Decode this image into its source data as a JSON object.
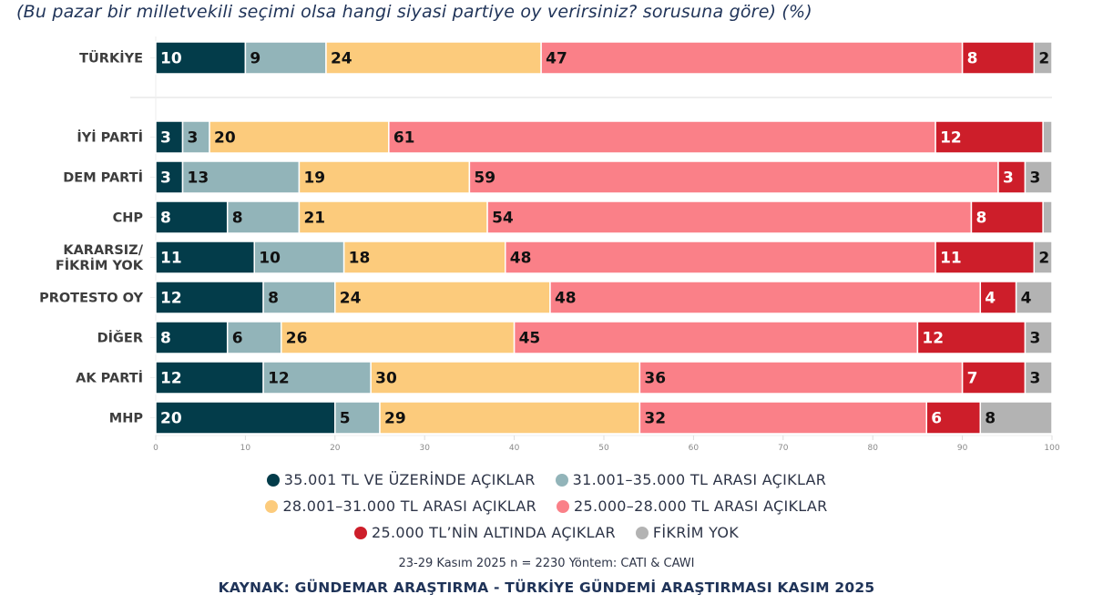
{
  "subtitle": "(Bu pazar bir milletvekili seçimi olsa hangi siyasi partiye oy verirsiniz? sorusuna göre) (%)",
  "colors": {
    "series": [
      "#033c4a",
      "#92b4b9",
      "#fccb7c",
      "#fa8088",
      "#cd1e2a",
      "#b3b3b3"
    ],
    "label_dark": "#111111",
    "label_light": "#ffffff"
  },
  "chart_data": {
    "type": "bar",
    "orientation": "horizontal",
    "stacked": true,
    "title": "(Bu pazar bir milletvekili seçimi olsa hangi siyasi partiye oy verirsiniz? sorusuna göre) (%)",
    "xlabel": "",
    "ylabel": "",
    "xlim": [
      0,
      100
    ],
    "xticks": [
      0,
      10,
      20,
      30,
      40,
      50,
      60,
      70,
      80,
      90,
      100
    ],
    "grid": false,
    "legend_position": "bottom",
    "categories": [
      "TÜRKİYE",
      "İYİ PARTİ",
      "DEM PARTİ",
      "CHP",
      "KARARSIZ/\nFİKRİM YOK",
      "PROTESTO OY",
      "DİĞER",
      "AK PARTİ",
      "MHP"
    ],
    "series": [
      {
        "name": "35.001 TL VE ÜZERİNDE AÇIKLAR",
        "values": [
          10,
          3,
          3,
          8,
          11,
          12,
          8,
          12,
          20
        ]
      },
      {
        "name": "31.001–35.000 TL ARASI AÇIKLAR",
        "values": [
          9,
          3,
          13,
          8,
          10,
          8,
          6,
          12,
          5
        ]
      },
      {
        "name": "28.001–31.000 TL ARASI AÇIKLAR",
        "values": [
          24,
          20,
          19,
          21,
          18,
          24,
          26,
          30,
          29
        ]
      },
      {
        "name": "25.000–28.000 TL ARASI AÇIKLAR",
        "values": [
          47,
          61,
          59,
          54,
          48,
          48,
          45,
          36,
          32
        ]
      },
      {
        "name": "25.000 TL'NİN ALTINDA AÇIKLAR",
        "values": [
          8,
          12,
          3,
          8,
          11,
          4,
          12,
          7,
          6
        ]
      },
      {
        "name": "FİKRİM YOK",
        "values": [
          2,
          1,
          3,
          1,
          2,
          4,
          3,
          3,
          8
        ]
      }
    ],
    "value_labels_shown": [
      [
        true,
        true,
        true,
        true,
        true,
        true
      ],
      [
        true,
        true,
        true,
        true,
        true,
        false
      ],
      [
        true,
        true,
        true,
        true,
        true,
        true
      ],
      [
        true,
        true,
        true,
        true,
        true,
        false
      ],
      [
        true,
        true,
        true,
        true,
        true,
        true
      ],
      [
        true,
        true,
        true,
        true,
        true,
        true
      ],
      [
        true,
        true,
        true,
        true,
        true,
        true
      ],
      [
        true,
        true,
        true,
        true,
        true,
        true
      ],
      [
        true,
        true,
        true,
        true,
        true,
        true
      ]
    ]
  },
  "legend": {
    "rows": [
      [
        {
          "label": "35.001 TL VE ÜZERİNDE AÇIKLAR",
          "series": 0
        },
        {
          "label": "31.001–35.000 TL ARASI AÇIKLAR",
          "series": 1
        }
      ],
      [
        {
          "label": "28.001–31.000 TL ARASI AÇIKLAR",
          "series": 2
        },
        {
          "label": "25.000–28.000 TL ARASI AÇIKLAR",
          "series": 3
        }
      ],
      [
        {
          "label": "25.000 TL’NİN ALTINDA AÇIKLAR",
          "series": 4
        },
        {
          "label": "FİKRİM YOK",
          "series": 5
        }
      ]
    ]
  },
  "footnote": "23-29 Kasım 2025 n = 2230 Yöntem: CATI & CAWI",
  "source": "KAYNAK: GÜNDEMAR ARAŞTIRMA - TÜRKİYE GÜNDEMİ ARAŞTIRMASI KASIM 2025"
}
